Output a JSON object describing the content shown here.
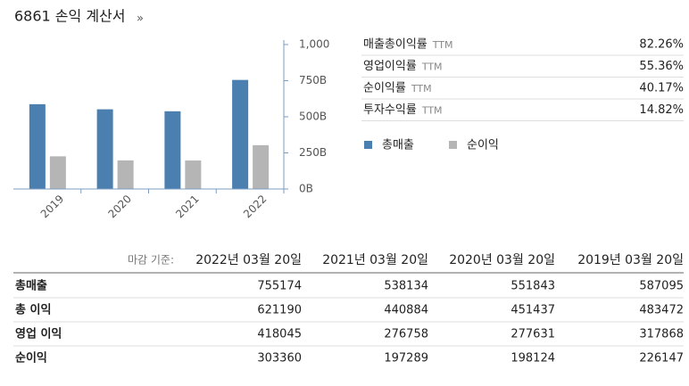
{
  "header": {
    "title": "6861 손익 계산서",
    "link": "»"
  },
  "chart_data": {
    "type": "bar",
    "categories": [
      "2019",
      "2020",
      "2021",
      "2022"
    ],
    "series": [
      {
        "name": "총매출",
        "color": "#4a7fb0",
        "values": [
          587.095,
          551.843,
          538.134,
          755.174
        ]
      },
      {
        "name": "순이익",
        "color": "#b5b5b5",
        "values": [
          226.147,
          198.124,
          197.289,
          303.36
        ]
      }
    ],
    "ylim": [
      0,
      1000
    ],
    "yticks": [
      {
        "value": 0,
        "label": "0B"
      },
      {
        "value": 250,
        "label": "250B"
      },
      {
        "value": 500,
        "label": "500B"
      },
      {
        "value": 750,
        "label": "750B"
      },
      {
        "value": 1000,
        "label": "1,000"
      }
    ]
  },
  "metrics": [
    {
      "name": "매출총이익률",
      "period": "TTM",
      "value": "82.26%"
    },
    {
      "name": "영업이익률",
      "period": "TTM",
      "value": "55.36%"
    },
    {
      "name": "순이익률",
      "period": "TTM",
      "value": "40.17%"
    },
    {
      "name": "투자수익률",
      "period": "TTM",
      "value": "14.82%"
    }
  ],
  "table": {
    "label": "마감 기준:",
    "columns": [
      "2022년 03월 20일",
      "2021년 03월 20일",
      "2020년 03월 20일",
      "2019년 03월 20일"
    ],
    "rows": [
      [
        "총매출",
        755174,
        538134,
        551843,
        587095
      ],
      [
        "총 이익",
        621190,
        440884,
        451437,
        483472
      ],
      [
        "영업 이익",
        418045,
        276758,
        277631,
        317868
      ],
      [
        "순이익",
        303360,
        197289,
        198124,
        226147
      ]
    ]
  }
}
